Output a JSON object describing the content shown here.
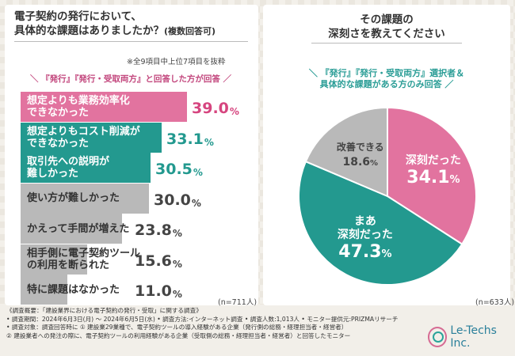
{
  "left": {
    "title_line1": "電子契約の発行において、",
    "title_line2_main": "具体的な課題はありましたか？",
    "title_line2_suffix": "(複数回答可)",
    "note": "※全9項目中上位7項目を抜粋",
    "subtitle": "『発行』『発行・受取両方』と回答した方が回答",
    "n": "(n=711人)"
  },
  "right": {
    "title_line1": "その課題の",
    "title_line2": "深刻さを教えてください",
    "subtitle_line1": "『発行』『発行・受取両方』選択者＆",
    "subtitle_line2": "具体的な課題がある方のみ回答",
    "n": "(n=633人)"
  },
  "colors": {
    "pink": "#e2739f",
    "teal": "#23998f",
    "gray": "#b9b9b9",
    "pink_text": "#d6457f",
    "teal_text": "#23998f",
    "gray_text": "#444444"
  },
  "chart_data": [
    {
      "type": "bar",
      "orientation": "horizontal",
      "categories": [
        "想定よりも業務効率化\nできなかった",
        "想定よりもコスト削減が\nできなかった",
        "取引先への説明が\n難しかった",
        "使い方が難しかった",
        "かえって手間が増えた",
        "相手側に電子契約ツール\nの利用を断られた",
        "特に課題はなかった"
      ],
      "values": [
        39.0,
        33.1,
        30.5,
        30.0,
        23.8,
        15.6,
        11.0
      ],
      "value_labels": [
        "39.0",
        "33.1",
        "30.5",
        "30.0",
        "23.8",
        "15.6",
        "11.0"
      ],
      "unit": "%",
      "colors": [
        "pink",
        "teal",
        "teal",
        "gray",
        "gray",
        "gray",
        "gray"
      ]
    },
    {
      "type": "pie",
      "labels": [
        "深刻だった",
        "まあ\n深刻だった",
        "改善できる"
      ],
      "values": [
        34.1,
        47.3,
        18.6
      ],
      "value_labels": [
        "34.1",
        "47.3",
        "18.6"
      ],
      "unit": "%",
      "colors": [
        "pink",
        "teal",
        "gray"
      ]
    }
  ],
  "footer": [
    "《調査概要：「建設業界における電子契約の発行・受取」に関する調査》",
    "• 調査期間：2024年6月3日(月) ～ 2024年6月5日(水)  • 調査方法:インターネット調査  • 調査人数:1,013人  • モニター提供元:PRIZMAリサーチ",
    "• 調査対象：調査回答時に  ① 建設業29業種で、電子契約ツールの導入経験がある企業（発行側の総務・経理担当者・経営者）",
    "    ② 建設業者への発注の際に、電子契約ツールの利用経験がある企業（受取側の総務・経理担当者・経営者）と回答したモニター"
  ],
  "logo": {
    "text": "Le-Techs Inc."
  }
}
